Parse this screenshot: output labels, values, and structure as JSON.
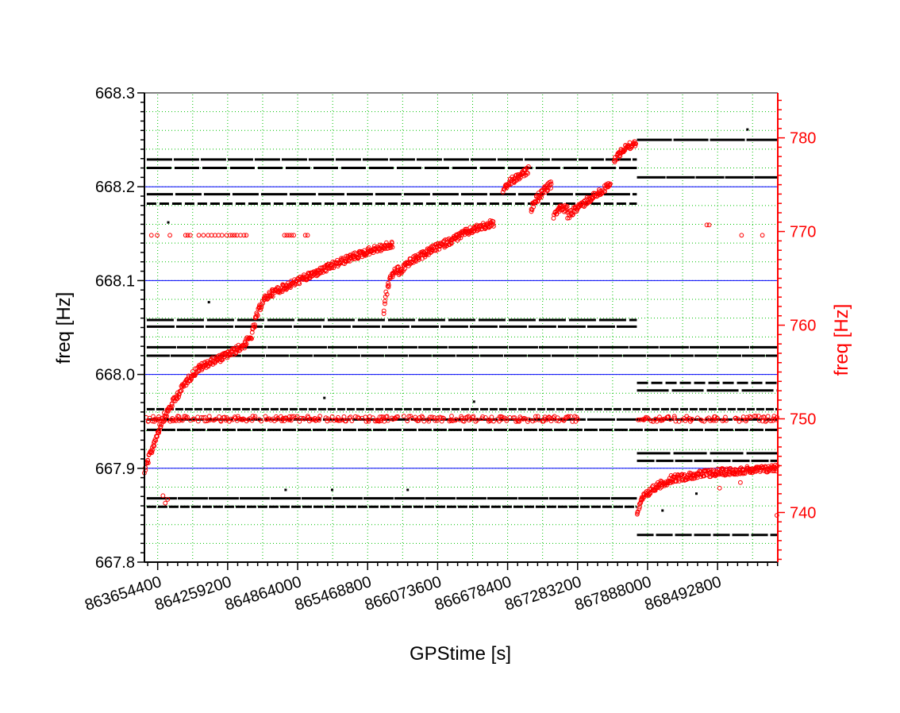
{
  "chart_data": {
    "type": "scatter",
    "title": "",
    "xlabel": "GPStime [s]",
    "ylabel": "freq [Hz]",
    "y2label": "freq [Hz]",
    "xlim": [
      863540000,
      869013000
    ],
    "ylim": [
      667.8,
      668.3
    ],
    "y2lim": [
      734.7,
      784.8
    ],
    "x_ticks": [
      863654400,
      864259200,
      864864000,
      865468800,
      866073600,
      866678400,
      867283200,
      867888000,
      868492800
    ],
    "x_tick_labels": [
      "863654400",
      "864259200",
      "864864000",
      "865468800",
      "866073600",
      "866678400",
      "867283200",
      "867888000",
      "868492800"
    ],
    "y_ticks": [
      667.8,
      667.9,
      668.0,
      668.1,
      668.2,
      668.3
    ],
    "y_tick_labels": [
      "667.8",
      "667.9",
      "668.0",
      "668.1",
      "668.2",
      "668.3"
    ],
    "y2_ticks": [
      740,
      750,
      760,
      770,
      780
    ],
    "y2_tick_labels": [
      "740",
      "750",
      "760",
      "770",
      "780"
    ],
    "grid": true,
    "reference_lines": [
      668.2,
      668.1,
      668.0,
      667.9
    ],
    "colors": {
      "left_axis": "#000000",
      "right_axis": "#ff0000",
      "series_black": "#000000",
      "series_red": "#ff0000",
      "reference": "#0000ff",
      "grid": "#00c000"
    },
    "series": [
      {
        "axis": "left",
        "color": "#000000",
        "marker": "dot",
        "lines": [
          {
            "y": 668.229,
            "x": [
              863560000,
              867795000
            ]
          },
          {
            "y": 668.22,
            "x": [
              863560000,
              867795000
            ]
          },
          {
            "y": 668.192,
            "x": [
              863560000,
              867795000
            ]
          },
          {
            "y": 668.182,
            "x": [
              863560000,
              867795000
            ]
          },
          {
            "y": 668.058,
            "x": [
              863560000,
              867795000
            ]
          },
          {
            "y": 668.051,
            "x": [
              863560000,
              867795000
            ]
          },
          {
            "y": 668.029,
            "x": [
              863560000,
              869010000
            ]
          },
          {
            "y": 668.02,
            "x": [
              863560000,
              869010000
            ]
          },
          {
            "y": 667.991,
            "x": [
              867796000,
              869010000
            ]
          },
          {
            "y": 667.983,
            "x": [
              867796000,
              869010000
            ]
          },
          {
            "y": 667.963,
            "x": [
              863560000,
              869010000
            ]
          },
          {
            "y": 667.952,
            "x": [
              863560000,
              869010000
            ]
          },
          {
            "y": 667.941,
            "x": [
              863560000,
              869010000
            ]
          },
          {
            "y": 667.916,
            "x": [
              867796000,
              869010000
            ]
          },
          {
            "y": 667.908,
            "x": [
              867796000,
              869010000
            ]
          },
          {
            "y": 667.868,
            "x": [
              863560000,
              867795000
            ]
          },
          {
            "y": 667.859,
            "x": [
              863560000,
              867795000
            ]
          },
          {
            "y": 667.829,
            "x": [
              867796000,
              869010000
            ]
          },
          {
            "y": 668.25,
            "x": [
              867796000,
              869010000
            ]
          },
          {
            "y": 668.21,
            "x": [
              867796000,
              869010000
            ]
          }
        ],
        "points": [
          {
            "x": 863746000,
            "y": 668.162
          },
          {
            "x": 864097000,
            "y": 668.077
          },
          {
            "x": 865095000,
            "y": 667.975
          },
          {
            "x": 866388000,
            "y": 667.971
          },
          {
            "x": 865162000,
            "y": 667.877
          },
          {
            "x": 864760000,
            "y": 667.877
          },
          {
            "x": 865815000,
            "y": 667.877
          },
          {
            "x": 868751000,
            "y": 668.261
          },
          {
            "x": 868017000,
            "y": 667.855
          },
          {
            "x": 868310000,
            "y": 667.873
          }
        ]
      },
      {
        "axis": "right",
        "color": "#ff0000",
        "marker": "open-circle",
        "curves": [
          {
            "x": [
              863540000,
              863600000,
              863650000,
              863700000,
              863800000,
              863900000,
              864000000,
              864100000,
              864200000,
              864300000,
              864400000,
              864460000,
              864510000,
              864560000,
              864620000,
              864700000,
              864900000,
              865100000,
              865300000,
              865500000,
              865690000
            ],
            "y": [
              744.5,
              746.5,
              748.4,
              750.0,
              752.0,
              754.0,
              755.3,
              756.0,
              756.5,
              757.1,
              757.9,
              758.7,
              761.0,
              762.5,
              763.3,
              763.8,
              764.9,
              766.0,
              767.1,
              768.0,
              768.6
            ]
          },
          {
            "x": [
              865610000,
              865640000,
              865680000,
              865740000
            ],
            "y": [
              761.5,
              764.0,
              765.5,
              766.0
            ]
          },
          {
            "x": [
              865740000,
              865800000,
              865900000,
              866000000,
              866100000,
              866200000,
              866300000,
              866400000,
              866480000,
              866563000
            ],
            "y": [
              765.5,
              766.5,
              767.2,
              767.9,
              768.5,
              769.1,
              769.8,
              770.3,
              770.6,
              770.9
            ]
          },
          {
            "x": [
              866640000,
              866700000,
              866800000,
              866860000
            ],
            "y": [
              774.3,
              775.3,
              776.0,
              776.6
            ]
          },
          {
            "x": [
              866880000,
              866930000,
              867000000,
              867060000
            ],
            "y": [
              772.5,
              773.5,
              774.5,
              775.0
            ]
          },
          {
            "x": [
              867080000,
              867110000,
              867160000,
              867200000
            ],
            "y": [
              771.7,
              772.4,
              772.5,
              772.3
            ]
          },
          {
            "x": [
              867200000,
              867300000,
              867400000,
              867500000,
              867570000
            ],
            "y": [
              771.7,
              772.7,
              773.6,
              774.4,
              775.0
            ]
          },
          {
            "x": [
              867600000,
              867650000,
              867700000,
              867790000
            ],
            "y": [
              777.6,
              778.4,
              779.0,
              779.5
            ]
          },
          {
            "x": [
              867800000,
              867850000,
              867950000,
              868100000,
              868300000,
              868500000,
              868700000,
              868900000,
              869010000
            ],
            "y": [
              739.9,
              741.6,
              742.7,
              743.6,
              744.0,
              744.3,
              744.5,
              744.6,
              744.8
            ]
          }
        ],
        "bands": [
          {
            "y": 750.0,
            "x": [
              863540000,
              867300000
            ]
          },
          {
            "y": 750.0,
            "x": [
              867800000,
              869010000
            ]
          }
        ],
        "points": [
          {
            "x": 863600000,
            "y": 769.6
          },
          {
            "x": 863650000,
            "y": 769.6
          },
          {
            "x": 863760000,
            "y": 769.6
          },
          {
            "x": 863895000,
            "y": 769.6
          },
          {
            "x": 863915000,
            "y": 769.6
          },
          {
            "x": 863936000,
            "y": 769.6
          },
          {
            "x": 864010000,
            "y": 769.6
          },
          {
            "x": 864050000,
            "y": 769.6
          },
          {
            "x": 864090000,
            "y": 769.6
          },
          {
            "x": 864120000,
            "y": 769.6
          },
          {
            "x": 864150000,
            "y": 769.6
          },
          {
            "x": 864180000,
            "y": 769.6
          },
          {
            "x": 864210000,
            "y": 769.6
          },
          {
            "x": 864250000,
            "y": 769.6
          },
          {
            "x": 864280000,
            "y": 769.6
          },
          {
            "x": 864300000,
            "y": 769.6
          },
          {
            "x": 864320000,
            "y": 769.6
          },
          {
            "x": 864340000,
            "y": 769.6
          },
          {
            "x": 864370000,
            "y": 769.6
          },
          {
            "x": 864400000,
            "y": 769.6
          },
          {
            "x": 864420000,
            "y": 769.6
          },
          {
            "x": 864750000,
            "y": 769.6
          },
          {
            "x": 864770000,
            "y": 769.6
          },
          {
            "x": 864790000,
            "y": 769.6
          },
          {
            "x": 864810000,
            "y": 769.6
          },
          {
            "x": 864830000,
            "y": 769.6
          },
          {
            "x": 864930000,
            "y": 769.6
          },
          {
            "x": 864950000,
            "y": 769.6
          },
          {
            "x": 868400000,
            "y": 770.7
          },
          {
            "x": 868420000,
            "y": 770.7
          },
          {
            "x": 868700000,
            "y": 769.6
          },
          {
            "x": 868880000,
            "y": 769.6
          },
          {
            "x": 863700000,
            "y": 741.8
          },
          {
            "x": 863720000,
            "y": 741.0
          },
          {
            "x": 863740000,
            "y": 741.4
          },
          {
            "x": 868510000,
            "y": 742.6
          },
          {
            "x": 868690000,
            "y": 743.2
          },
          {
            "x": 869005000,
            "y": 739.7
          }
        ]
      }
    ]
  }
}
